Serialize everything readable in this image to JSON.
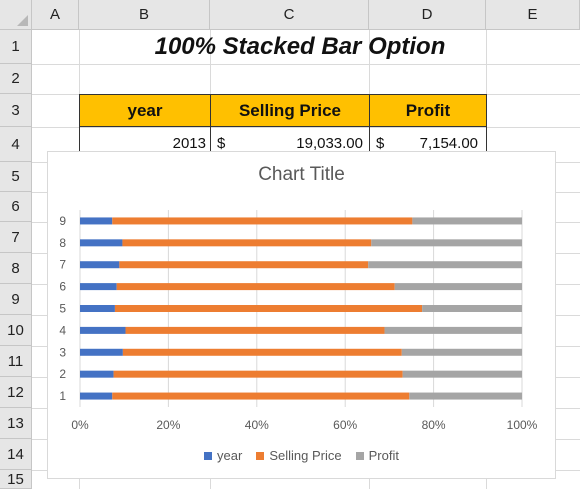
{
  "sheet": {
    "columns": [
      "A",
      "B",
      "C",
      "D",
      "E"
    ],
    "rows": [
      "1",
      "2",
      "3",
      "4",
      "5",
      "6",
      "7",
      "8",
      "9",
      "10",
      "11",
      "12",
      "13",
      "14",
      "15"
    ],
    "title": "100% Stacked Bar Option",
    "headers": [
      "year",
      "Selling Price",
      "Profit"
    ],
    "row4": {
      "year": "2013",
      "price_sym": "$",
      "price": "19,033.00",
      "profit_sym": "$",
      "profit": "7,154.00"
    }
  },
  "chart_data": {
    "type": "bar",
    "orientation": "horizontal",
    "stacked": "percent",
    "title": "Chart Title",
    "categories": [
      "1",
      "2",
      "3",
      "4",
      "5",
      "6",
      "7",
      "8",
      "9"
    ],
    "series": [
      {
        "name": "year",
        "color": "#4472c4",
        "values": [
          7.3,
          7.6,
          9.7,
          10.3,
          7.9,
          8.3,
          8.9,
          9.6,
          7.3
        ]
      },
      {
        "name": "Selling Price",
        "color": "#ed7d31",
        "values": [
          67.2,
          65.4,
          63.1,
          58.6,
          69.5,
          62.9,
          56.3,
          56.3,
          67.9
        ]
      },
      {
        "name": "Profit",
        "color": "#a5a5a5",
        "values": [
          25.5,
          27.0,
          27.2,
          31.1,
          22.6,
          28.8,
          34.8,
          34.1,
          24.8
        ]
      }
    ],
    "xticks": [
      "0%",
      "20%",
      "40%",
      "60%",
      "80%",
      "100%"
    ],
    "xlim": [
      0,
      100
    ],
    "grid": true,
    "legend": "bottom"
  }
}
